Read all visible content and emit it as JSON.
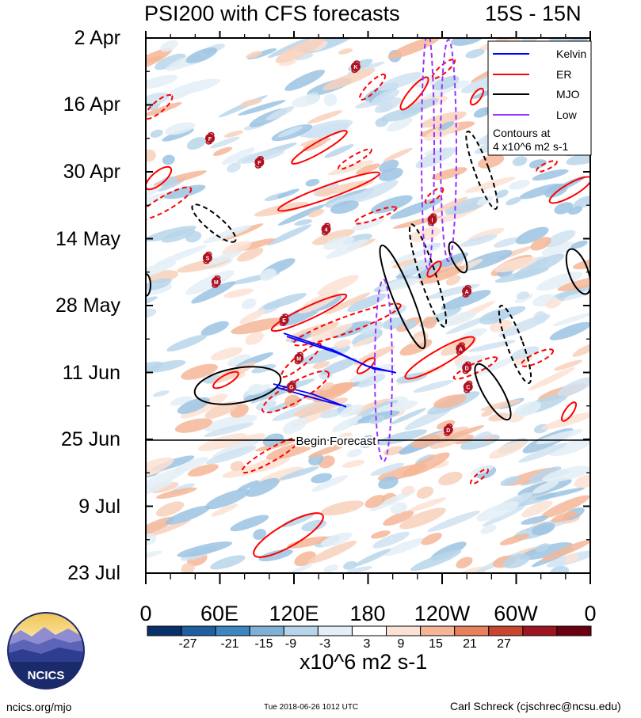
{
  "chart_data": {
    "type": "heatmap",
    "title": "PSI200 with CFS forecasts",
    "subtitle": "15S - 15N",
    "x_ticks": [
      "0",
      "60E",
      "120E",
      "180",
      "120W",
      "60W",
      "0"
    ],
    "y_ticks": [
      "2 Apr",
      "16 Apr",
      "30 Apr",
      "14 May",
      "28 May",
      "11 Jun",
      "25 Jun",
      "9 Jul",
      "23 Jul"
    ],
    "colorbar": {
      "labels": [
        "-27",
        "-21",
        "-15",
        "-9",
        "-3",
        "3",
        "9",
        "15",
        "21",
        "27"
      ],
      "colors": [
        "#08306b",
        "#1d5fa0",
        "#3e86c0",
        "#7fb1d8",
        "#b7d5ea",
        "#e3eef6",
        "#ffffff",
        "#fbe2d4",
        "#f5b697",
        "#e8805c",
        "#c84530",
        "#9c1520",
        "#6b0010"
      ],
      "units": "x10^6 m2 s-1"
    },
    "legend": {
      "position": "top-right",
      "entries": [
        {
          "name": "Kelvin",
          "color": "#0000ff"
        },
        {
          "name": "ER",
          "color": "#ff0000"
        },
        {
          "name": "MJO",
          "color": "#000000"
        },
        {
          "name": "Low",
          "color": "#9933ff"
        }
      ],
      "note_line1": "Contours at",
      "note_line2": "4 x10^6 m2 s-1"
    },
    "forecast_start": "25 Jun",
    "forecast_label": "Begin Forecast",
    "storms": [
      {
        "letter": "K",
        "lon": 170,
        "date": "8 Apr"
      },
      {
        "letter": "F",
        "lon": 52,
        "date": "23 Apr"
      },
      {
        "letter": "F",
        "lon": 92,
        "date": "28 Apr"
      },
      {
        "letter": "4",
        "lon": 146,
        "date": "12 May"
      },
      {
        "letter": "S",
        "lon": 50,
        "date": "18 May"
      },
      {
        "letter": "M",
        "lon": 57,
        "date": "23 May"
      },
      {
        "letter": "I",
        "lon": 232,
        "date": "10 May"
      },
      {
        "letter": "A",
        "lon": 260,
        "date": "25 May"
      },
      {
        "letter": "E",
        "lon": 112,
        "date": "31 May"
      },
      {
        "letter": "M",
        "lon": 124,
        "date": "8 Jun"
      },
      {
        "letter": "A",
        "lon": 255,
        "date": "6 Jun"
      },
      {
        "letter": "D",
        "lon": 260,
        "date": "10 Jun"
      },
      {
        "letter": "G",
        "lon": 118,
        "date": "14 Jun"
      },
      {
        "letter": "C",
        "lon": 261,
        "date": "14 Jun"
      },
      {
        "letter": "D",
        "lon": 245,
        "date": "23 Jun"
      }
    ]
  },
  "footer": {
    "left": "ncics.org/mjo",
    "middle": "Tue 2018-06-26 1012 UTC",
    "right": "Carl Schreck (cjschrec@ncsu.edu)"
  },
  "logo": {
    "text": "NCICS"
  }
}
